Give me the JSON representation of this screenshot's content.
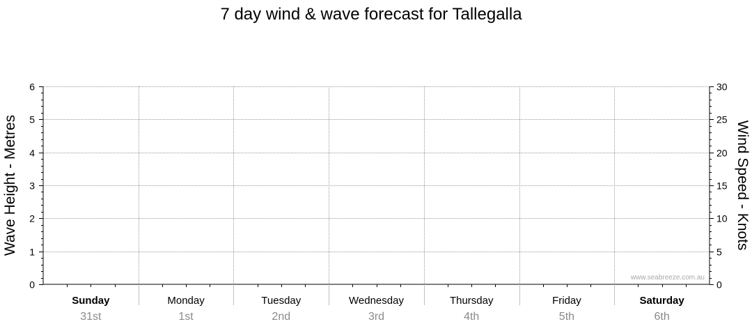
{
  "chart_data": {
    "type": "line",
    "title": "7 day wind & wave forecast for Tallegalla",
    "ylabel": "Wave Height - Metres",
    "y2label": "Wind Speed - Knots",
    "ylim": [
      0,
      6
    ],
    "y2lim": [
      0,
      30
    ],
    "yticks": [
      "0",
      "1",
      "2",
      "3",
      "4",
      "5",
      "6"
    ],
    "y2ticks": [
      "0",
      "5",
      "10",
      "15",
      "20",
      "25",
      "30"
    ],
    "days": [
      {
        "name": "Sunday",
        "date": "31st",
        "bold": true
      },
      {
        "name": "Monday",
        "date": "1st",
        "bold": false
      },
      {
        "name": "Tuesday",
        "date": "2nd",
        "bold": false
      },
      {
        "name": "Wednesday",
        "date": "3rd",
        "bold": false
      },
      {
        "name": "Thursday",
        "date": "4th",
        "bold": false
      },
      {
        "name": "Friday",
        "date": "5th",
        "bold": false
      },
      {
        "name": "Saturday",
        "date": "6th",
        "bold": true
      }
    ],
    "series": [],
    "grid": true,
    "watermark": "www.seabreeze.com.au"
  },
  "colors": {
    "grid": "#9a9a9a",
    "axis": "#000000",
    "date": "#8a8a8a",
    "watermark": "#a8a8a8"
  }
}
